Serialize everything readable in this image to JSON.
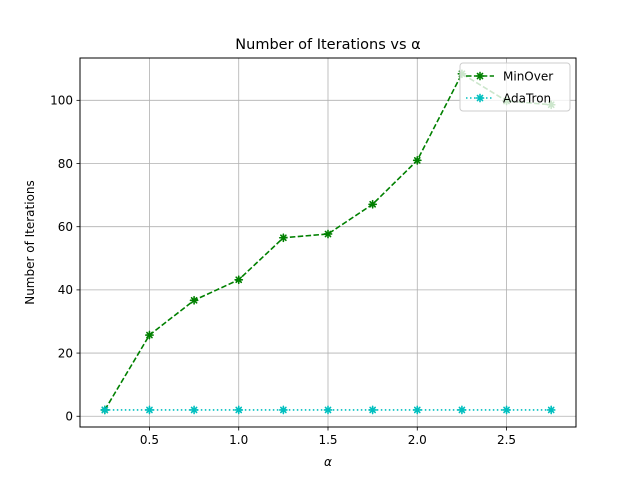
{
  "chart_data": {
    "type": "line",
    "title": "Number of Iterations vs α",
    "xlabel": "α",
    "ylabel": "Number of Iterations",
    "x": [
      0.25,
      0.5,
      0.75,
      1.0,
      1.25,
      1.5,
      1.75,
      2.0,
      2.25,
      2.5,
      2.75
    ],
    "xlim": [
      0.111,
      2.889
    ],
    "ylim": [
      -3.4,
      113.4
    ],
    "xticks": [
      0.5,
      1.0,
      1.5,
      2.0,
      2.5
    ],
    "xtick_labels": [
      "0.5",
      "1.0",
      "1.5",
      "2.0",
      "2.5"
    ],
    "yticks": [
      0,
      20,
      40,
      60,
      80,
      100
    ],
    "ytick_labels": [
      "0",
      "20",
      "40",
      "60",
      "80",
      "100"
    ],
    "grid": true,
    "legend_position": "upper right",
    "series": [
      {
        "name": "MinOver",
        "values": [
          2,
          25.7,
          36.7,
          43.2,
          56.5,
          57.7,
          67.1,
          81.0,
          108.4,
          99.8,
          98.6
        ],
        "color": "#008000",
        "linestyle": "dashed",
        "marker": "x-star"
      },
      {
        "name": "AdaTron",
        "values": [
          2,
          2,
          2,
          2,
          2,
          2,
          2,
          2,
          2,
          2,
          2
        ],
        "color": "#00bfbf",
        "linestyle": "dotted",
        "marker": "x-star"
      }
    ]
  }
}
